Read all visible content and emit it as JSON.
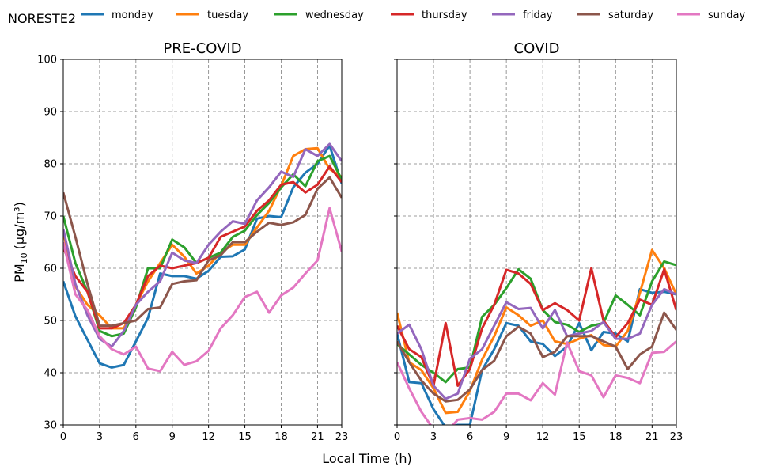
{
  "figure": {
    "station_label": "NORESTE2"
  },
  "legend_placement": "top",
  "chart_data": [
    {
      "type": "line",
      "title": "PRE-COVID",
      "xlabel": "Local Time (h)",
      "ylabel": "PM10 (µg/m³)",
      "ylabel_main": "PM",
      "ylabel_sub": "10",
      "ylabel_unit": "(µg/m³)",
      "xlim": [
        0,
        23
      ],
      "ylim": [
        30,
        100
      ],
      "xticks": [
        0,
        3,
        6,
        9,
        12,
        15,
        18,
        21,
        23
      ],
      "yticks": [
        30,
        40,
        50,
        60,
        70,
        80,
        90,
        100
      ],
      "grid": true,
      "x": [
        0,
        1,
        2,
        3,
        4,
        5,
        6,
        7,
        8,
        9,
        10,
        11,
        12,
        13,
        14,
        15,
        16,
        17,
        18,
        19,
        20,
        21,
        22,
        23
      ],
      "series": [
        {
          "name": "monday",
          "color": "#1f77b4",
          "values": [
            57.5,
            50.8,
            46.3,
            41.8,
            41.0,
            41.5,
            46.0,
            50.5,
            59.0,
            58.5,
            58.5,
            58.0,
            59.5,
            62.2,
            62.3,
            63.6,
            69.5,
            70.0,
            69.8,
            75.5,
            78.3,
            80.0,
            83.5,
            76.2
          ]
        },
        {
          "name": "tuesday",
          "color": "#ff7f0e",
          "values": [
            67.0,
            56.5,
            53.0,
            51.0,
            48.5,
            48.5,
            53.0,
            57.5,
            61.0,
            64.5,
            62.2,
            59.0,
            60.5,
            63.0,
            64.5,
            64.5,
            67.8,
            71.0,
            75.8,
            81.5,
            82.8,
            83.0,
            79.0,
            77.5
          ]
        },
        {
          "name": "wednesday",
          "color": "#2ca02c",
          "values": [
            70.0,
            61.0,
            55.5,
            48.0,
            47.0,
            47.5,
            52.5,
            60.0,
            60.0,
            65.5,
            64.0,
            61.0,
            62.0,
            63.0,
            66.0,
            67.2,
            70.2,
            72.5,
            75.5,
            78.0,
            75.7,
            80.5,
            81.5,
            77.0
          ]
        },
        {
          "name": "thursday",
          "color": "#d62728",
          "values": [
            64.0,
            58.5,
            55.5,
            48.5,
            48.5,
            49.5,
            53.0,
            58.5,
            60.5,
            60.0,
            60.5,
            61.0,
            62.0,
            66.0,
            67.0,
            68.0,
            71.0,
            73.0,
            76.0,
            76.5,
            74.5,
            76.0,
            79.5,
            76.5
          ]
        },
        {
          "name": "friday",
          "color": "#9467bd",
          "values": [
            67.5,
            57.0,
            51.0,
            46.5,
            45.0,
            48.0,
            53.0,
            55.5,
            57.5,
            63.0,
            61.5,
            61.0,
            64.5,
            67.0,
            69.0,
            68.5,
            73.0,
            75.5,
            78.5,
            77.5,
            82.8,
            81.5,
            83.8,
            80.5
          ]
        },
        {
          "name": "saturday",
          "color": "#8c564b",
          "values": [
            74.5,
            66.0,
            57.0,
            49.0,
            49.0,
            49.5,
            50.0,
            52.2,
            52.5,
            57.0,
            57.5,
            57.7,
            61.5,
            62.5,
            65.0,
            65.0,
            67.0,
            68.7,
            68.3,
            68.8,
            70.2,
            75.2,
            77.4,
            73.5
          ]
        },
        {
          "name": "sunday",
          "color": "#e377c2",
          "values": [
            65.0,
            55.0,
            52.0,
            47.0,
            44.5,
            43.5,
            45.0,
            40.8,
            40.3,
            44.0,
            41.5,
            42.2,
            44.2,
            48.5,
            51.0,
            54.5,
            55.5,
            51.5,
            54.8,
            56.3,
            59.0,
            61.5,
            71.5,
            63.2
          ]
        }
      ]
    },
    {
      "type": "line",
      "title": "COVID",
      "xlim": [
        0,
        23
      ],
      "ylim": [
        30,
        100
      ],
      "xticks": [
        0,
        3,
        6,
        9,
        12,
        15,
        18,
        21,
        23
      ],
      "yticks": [
        30,
        40,
        50,
        60,
        70,
        80,
        90,
        100
      ],
      "grid": true,
      "x": [
        0,
        1,
        2,
        3,
        4,
        5,
        6,
        7,
        8,
        9,
        10,
        11,
        12,
        13,
        14,
        15,
        16,
        17,
        18,
        19,
        20,
        21,
        22,
        23
      ],
      "series": [
        {
          "name": "monday",
          "color": "#1f77b4",
          "values": [
            47.5,
            38.2,
            38.0,
            33.0,
            29.5,
            30.0,
            30.0,
            40.5,
            44.5,
            49.5,
            49.0,
            46.0,
            45.5,
            43.2,
            45.0,
            49.5,
            44.3,
            47.8,
            47.5,
            46.0,
            56.0,
            55.3,
            55.5,
            55.0
          ]
        },
        {
          "name": "tuesday",
          "color": "#ff7f0e",
          "values": [
            51.5,
            42.0,
            40.5,
            37.0,
            32.3,
            32.5,
            36.5,
            42.5,
            47.0,
            52.5,
            51.0,
            49.0,
            50.0,
            46.0,
            45.5,
            46.5,
            47.2,
            45.3,
            45.0,
            48.0,
            55.3,
            63.5,
            60.0,
            55.0
          ]
        },
        {
          "name": "wednesday",
          "color": "#2ca02c",
          "values": [
            45.5,
            43.5,
            41.5,
            40.0,
            38.2,
            40.7,
            41.0,
            50.7,
            53.0,
            56.2,
            59.8,
            58.0,
            52.0,
            49.7,
            49.2,
            47.8,
            49.0,
            49.5,
            54.8,
            53.0,
            51.0,
            57.5,
            61.3,
            60.6
          ]
        },
        {
          "name": "thursday",
          "color": "#d62728",
          "values": [
            49.0,
            44.5,
            43.0,
            37.5,
            49.5,
            37.5,
            40.7,
            48.5,
            53.0,
            59.7,
            59.0,
            57.0,
            52.0,
            53.3,
            52.0,
            50.0,
            60.0,
            50.0,
            46.8,
            49.5,
            54.0,
            53.0,
            59.8,
            52.0
          ]
        },
        {
          "name": "friday",
          "color": "#9467bd",
          "values": [
            47.5,
            49.2,
            44.5,
            37.5,
            35.0,
            36.0,
            42.7,
            44.5,
            49.0,
            53.5,
            52.2,
            52.4,
            48.5,
            52.0,
            47.0,
            47.5,
            48.0,
            49.7,
            46.5,
            46.5,
            47.5,
            53.0,
            56.0,
            55.0
          ]
        },
        {
          "name": "saturday",
          "color": "#8c564b",
          "values": [
            46.0,
            42.0,
            38.5,
            36.0,
            34.5,
            34.8,
            36.8,
            40.5,
            42.3,
            47.0,
            48.8,
            47.5,
            43.0,
            44.0,
            47.0,
            47.0,
            47.0,
            46.0,
            45.0,
            40.7,
            43.5,
            45.0,
            51.5,
            48.2
          ]
        },
        {
          "name": "sunday",
          "color": "#e377c2",
          "values": [
            42.0,
            37.0,
            32.5,
            29.2,
            28.5,
            31.0,
            31.3,
            31.0,
            32.5,
            36.0,
            36.0,
            34.7,
            38.0,
            35.8,
            45.8,
            40.3,
            39.5,
            35.3,
            39.5,
            39.0,
            38.0,
            43.8,
            44.0,
            46.0
          ]
        }
      ]
    }
  ]
}
